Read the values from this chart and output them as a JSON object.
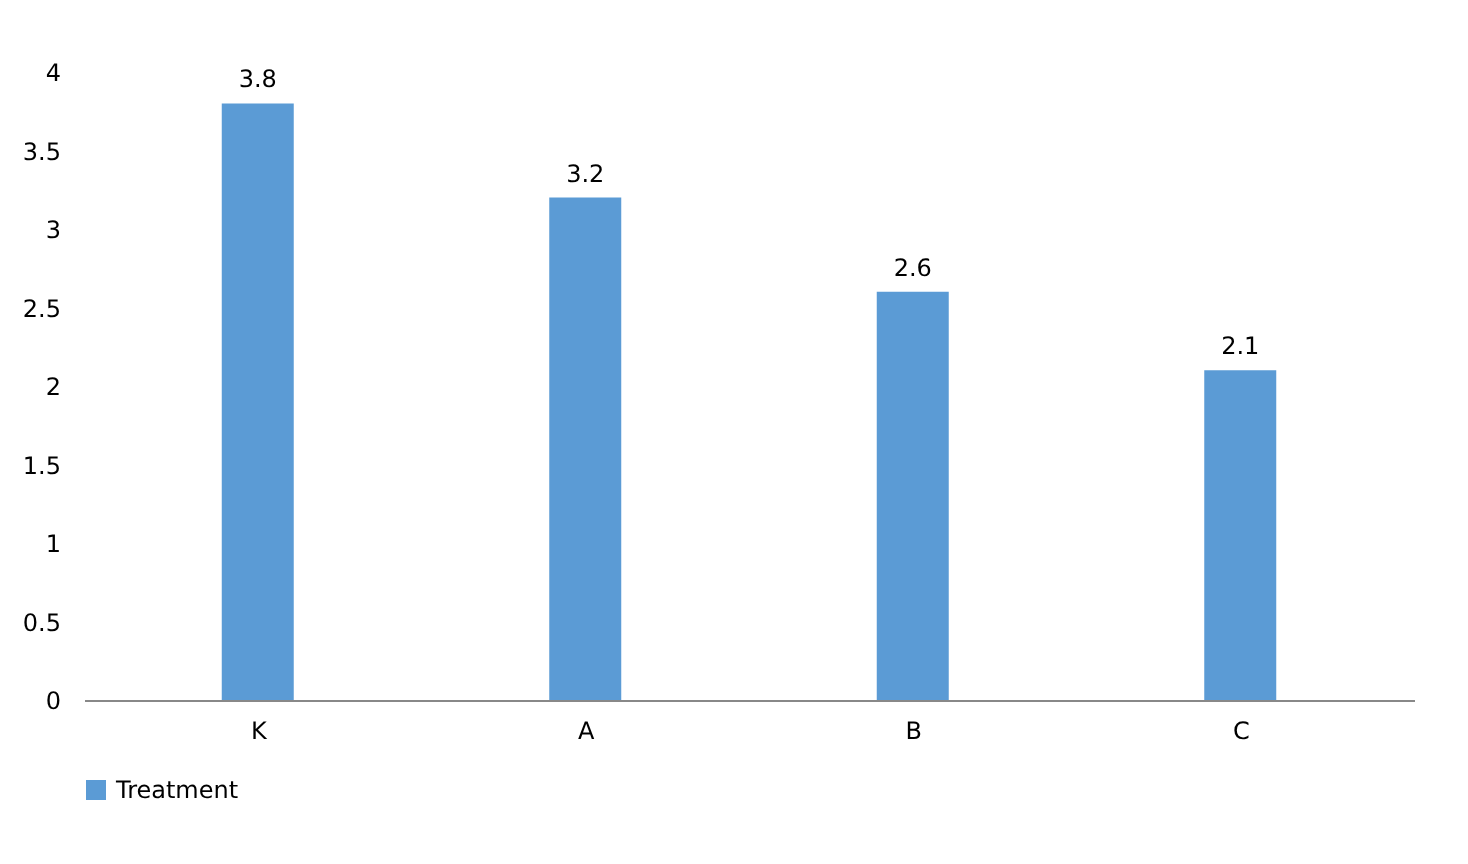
{
  "chart_data": {
    "type": "bar",
    "categories": [
      "K",
      "A",
      "B",
      "C"
    ],
    "series": [
      {
        "name": "Treatment",
        "color": "#5b9bd5",
        "values": [
          3.8,
          3.2,
          2.6,
          2.1
        ]
      }
    ],
    "ylim": [
      0,
      4
    ],
    "yticks": [
      0,
      0.5,
      1,
      1.5,
      2,
      2.5,
      3,
      3.5,
      4
    ],
    "grid": false,
    "legend": "bottom",
    "data_labels": true
  }
}
